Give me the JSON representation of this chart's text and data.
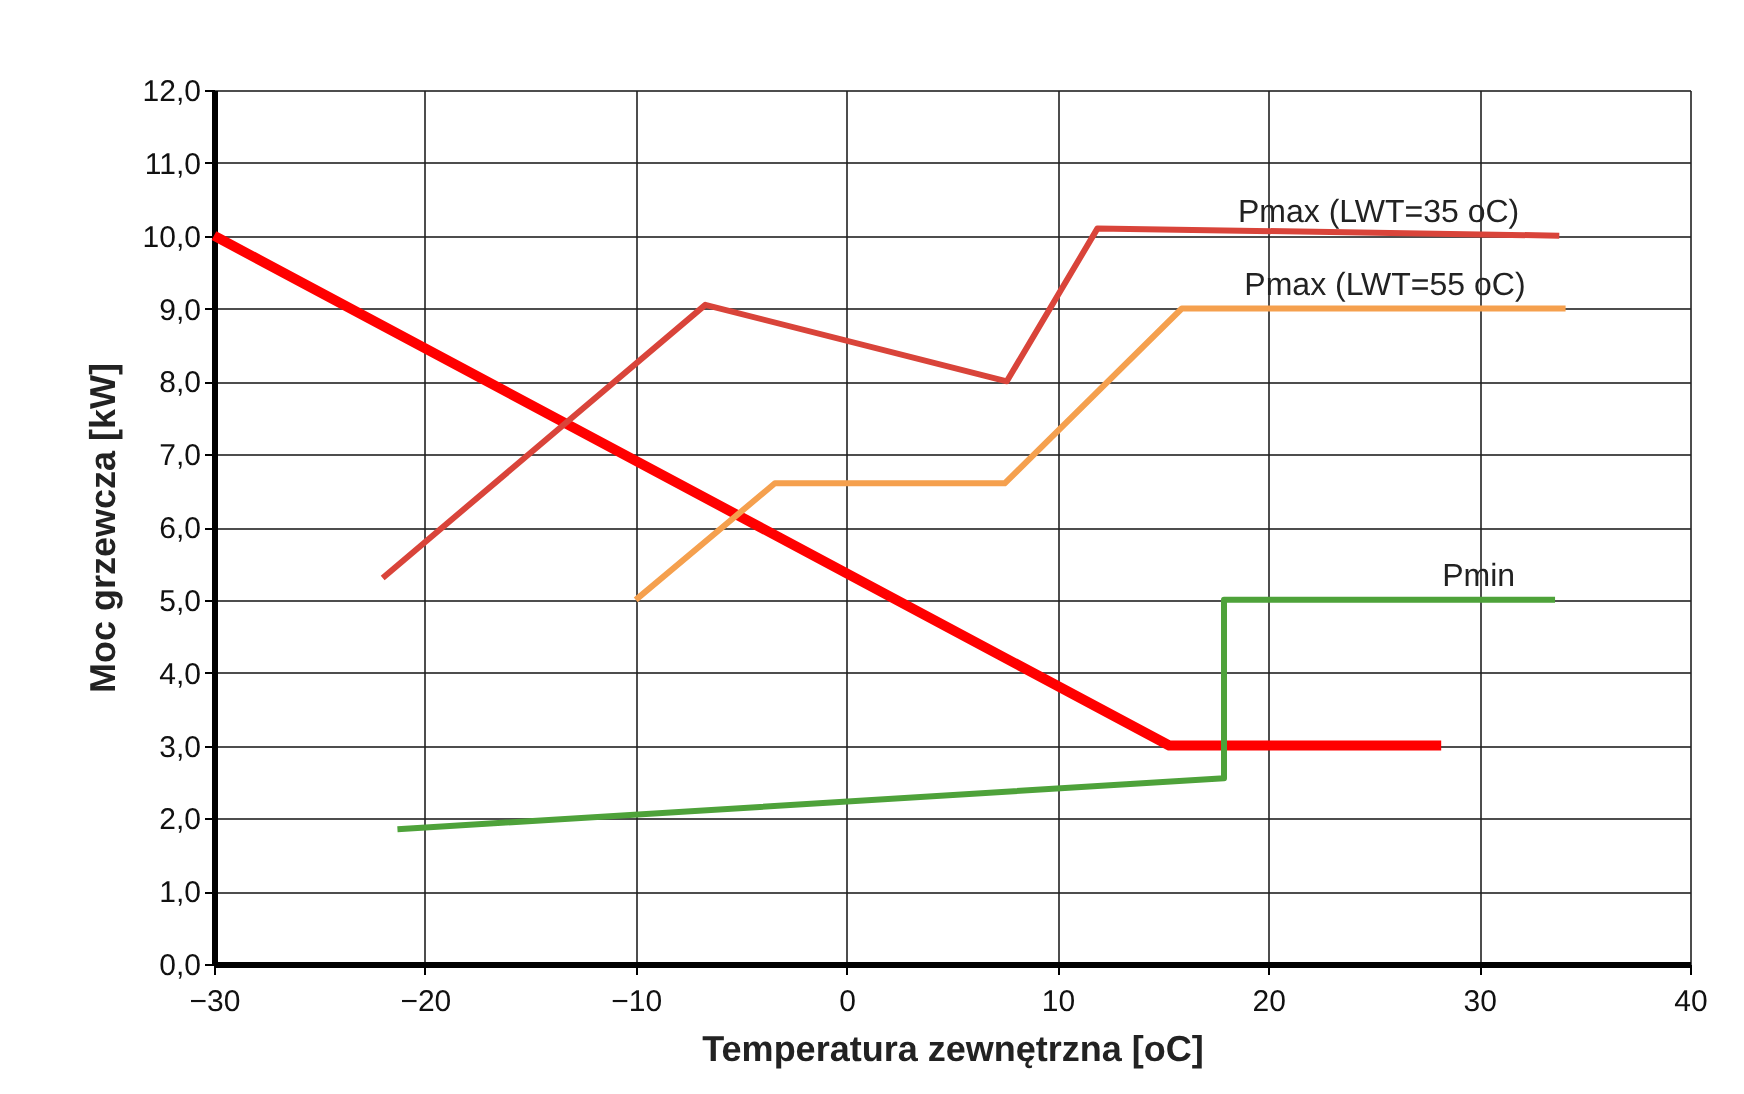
{
  "chart_data": {
    "type": "line",
    "xlabel": "Temperatura zewnętrzna  [oC]",
    "ylabel": "Moc grzewcza  [kW]",
    "xlim": [
      -30,
      40
    ],
    "xticks": [
      -30,
      -20,
      -10,
      0,
      10,
      20,
      30,
      40
    ],
    "ylim": [
      0,
      12
    ],
    "yticks": [
      {
        "value": 0,
        "label": "0,0"
      },
      {
        "value": 1,
        "label": "1,0"
      },
      {
        "value": 2,
        "label": "2,0"
      },
      {
        "value": 3,
        "label": "3,0"
      },
      {
        "value": 4,
        "label": "4,0"
      },
      {
        "value": 5,
        "label": "5,0"
      },
      {
        "value": 6,
        "label": "6,0"
      },
      {
        "value": 7,
        "label": "7,0"
      },
      {
        "value": 8,
        "label": "8,0"
      },
      {
        "value": 9,
        "label": "9,0"
      },
      {
        "value": 10,
        "label": "10,0"
      },
      {
        "value": 11,
        "label": "11,0"
      },
      {
        "value": 12,
        "label": "12,0"
      }
    ],
    "grid": true,
    "marker": "none",
    "line_style": "solid",
    "series": [
      {
        "color": "#ff0000",
        "x": [
          -30,
          15.3,
          28.2
        ],
        "values": [
          10.0,
          3.0,
          3.0
        ]
      },
      {
        "name": "Pmax (LWT=35 oC)",
        "color": "#d9443a",
        "x": [
          -22.0,
          -6.7,
          7.6,
          11.9,
          33.8
        ],
        "values": [
          5.3,
          9.05,
          8.0,
          10.1,
          10.0
        ]
      },
      {
        "name": "Pmax (LWT=55 oC)",
        "color": "#f5a04e",
        "x": [
          -10.0,
          -3.4,
          7.5,
          15.9,
          34.1
        ],
        "values": [
          5.0,
          6.6,
          6.6,
          9.0,
          9.0
        ]
      },
      {
        "name": "Pmin",
        "color": "#4ea23a",
        "x": [
          -21.3,
          17.9,
          17.9,
          33.6
        ],
        "values": [
          1.85,
          2.55,
          5.0,
          5.0
        ]
      }
    ]
  }
}
